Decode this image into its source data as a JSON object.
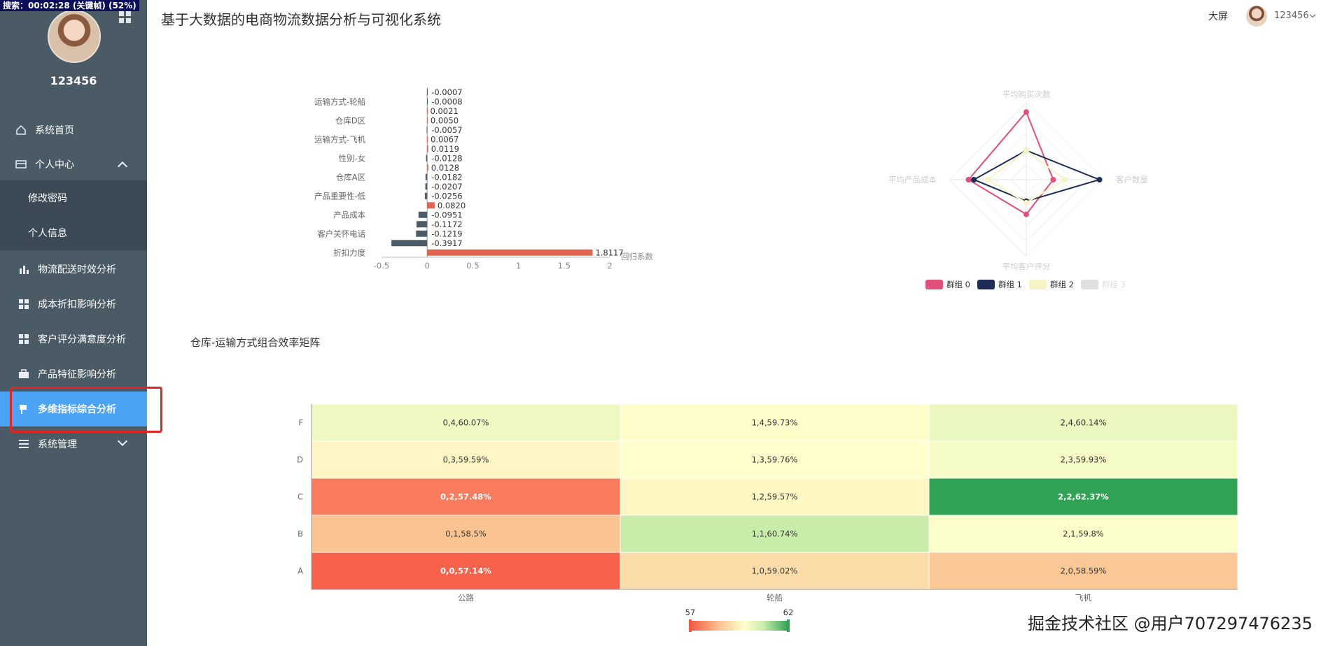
{
  "recording_banner": "搜索：00:02:28 (关键帧) (52%)",
  "page_title": "基于大数据的电商物流数据分析与可视化系统",
  "header": {
    "big_screen": "大屏",
    "username": "123456"
  },
  "sidebar": {
    "username": "123456",
    "items": [
      {
        "label": "系统首页",
        "icon": "home-icon"
      },
      {
        "label": "个人中心",
        "icon": "card-icon"
      },
      {
        "label": "修改密码"
      },
      {
        "label": "个人信息"
      },
      {
        "label": "物流配送时效分析",
        "icon": "bar-chart-icon"
      },
      {
        "label": "成本折扣影响分析",
        "icon": "grid-icon"
      },
      {
        "label": "客户评分满意度分析",
        "icon": "grid-icon"
      },
      {
        "label": "产品特征影响分析",
        "icon": "briefcase-icon"
      },
      {
        "label": "多维指标综合分析",
        "icon": "flag-icon"
      },
      {
        "label": "系统管理",
        "icon": "list-icon"
      }
    ]
  },
  "watermark": "掘金技术社区 @用户707297476235",
  "chart_data": [
    {
      "type": "bar",
      "orientation": "horizontal",
      "categories": [
        "折扣力度",
        "",
        "客户关怀电话",
        "",
        "产品成本",
        "",
        "产品重要性-低",
        "",
        "仓库A区",
        "",
        "性别-女",
        "",
        "运输方式-飞机",
        "",
        "仓库D区",
        "",
        "运输方式-轮船",
        ""
      ],
      "values": [
        1.8117,
        -0.3917,
        -0.1219,
        -0.1172,
        -0.0951,
        0.082,
        -0.0256,
        -0.0207,
        -0.0182,
        0.0128,
        -0.0128,
        0.0119,
        0.0067,
        -0.0057,
        0.005,
        0.0021,
        -0.0008,
        -0.0007
      ],
      "value_labels": [
        "1.8117",
        "-0.3917",
        "-0.1219",
        "-0.1172",
        "-0.0951",
        "0.0820",
        "-0.0256",
        "-0.0207",
        "-0.0182",
        "0.0128",
        "-0.0128",
        "0.0119",
        "0.0067",
        "-0.0057",
        "0.0050",
        "0.0021",
        "-0.0008",
        "-0.0007"
      ],
      "xlabel": "回归系数",
      "xlim": [
        -0.5,
        2
      ],
      "xticks": [
        "-0.5",
        "0",
        "0.5",
        "1",
        "1.5",
        "2"
      ],
      "colors": {
        "positive": "#e0644e",
        "negative": "#4b5c68"
      }
    },
    {
      "type": "radar",
      "indicators": [
        "平均购买次数",
        "客户数量",
        "平均客户评分",
        "平均产品成本"
      ],
      "series": [
        {
          "name": "群组 0",
          "values": [
            0.88,
            0.35,
            0.45,
            0.75
          ],
          "color": "#e0507a"
        },
        {
          "name": "群组 1",
          "values": [
            0.38,
            0.95,
            0.28,
            0.68
          ],
          "color": "#1f2d55"
        },
        {
          "name": "群组 2",
          "values": [
            0.38,
            0.5,
            0.3,
            0.5
          ],
          "color": "#f6f3c4"
        },
        {
          "name": "群组 3",
          "values": [
            0,
            0,
            0,
            0
          ],
          "color": "#e0e0e0"
        }
      ],
      "legend_position": "bottom"
    },
    {
      "type": "heatmap",
      "title": "仓库-运输方式组合效率矩阵",
      "x_categories": [
        "公路",
        "轮船",
        "飞机"
      ],
      "y_categories": [
        "A",
        "B",
        "C",
        "D",
        "F"
      ],
      "cells": [
        {
          "x": 0,
          "y": 4,
          "value": 60.07,
          "label": "0,4,60.07%"
        },
        {
          "x": 1,
          "y": 4,
          "value": 59.73,
          "label": "1,4,59.73%"
        },
        {
          "x": 2,
          "y": 4,
          "value": 60.14,
          "label": "2,4,60.14%"
        },
        {
          "x": 0,
          "y": 3,
          "value": 59.59,
          "label": "0,3,59.59%"
        },
        {
          "x": 1,
          "y": 3,
          "value": 59.76,
          "label": "1,3,59.76%"
        },
        {
          "x": 2,
          "y": 3,
          "value": 59.93,
          "label": "2,3,59.93%"
        },
        {
          "x": 0,
          "y": 2,
          "value": 57.48,
          "label": "0,2,57.48%"
        },
        {
          "x": 1,
          "y": 2,
          "value": 59.57,
          "label": "1,2,59.57%"
        },
        {
          "x": 2,
          "y": 2,
          "value": 62.37,
          "label": "2,2,62.37%"
        },
        {
          "x": 0,
          "y": 1,
          "value": 58.5,
          "label": "0,1,58.5%"
        },
        {
          "x": 1,
          "y": 1,
          "value": 60.74,
          "label": "1,1,60.74%"
        },
        {
          "x": 2,
          "y": 1,
          "value": 59.8,
          "label": "2,1,59.8%"
        },
        {
          "x": 0,
          "y": 0,
          "value": 57.14,
          "label": "0,0,57.14%"
        },
        {
          "x": 1,
          "y": 0,
          "value": 59.02,
          "label": "1,0,59.02%"
        },
        {
          "x": 2,
          "y": 0,
          "value": 58.59,
          "label": "2,0,58.59%"
        }
      ],
      "visual_map": {
        "min": 57,
        "max": 62,
        "min_label": "57",
        "max_label": "62"
      }
    }
  ]
}
